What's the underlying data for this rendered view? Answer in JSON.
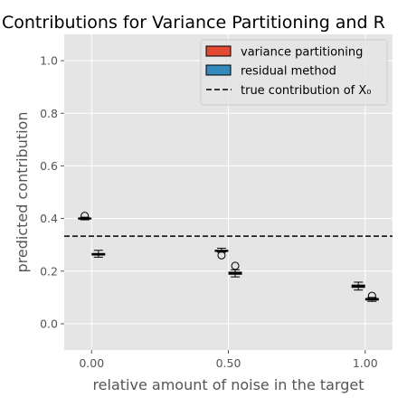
{
  "chart_data": {
    "type": "boxplot",
    "title": "Contributions for Variance Partitioning and R",
    "xlabel": "relative amount of noise in the target",
    "ylabel": "predicted contribution",
    "xlim": [
      -0.1,
      1.1
    ],
    "ylim": [
      -0.1,
      1.1
    ],
    "x_ticks": [
      0.0,
      0.5,
      1.0
    ],
    "x_tick_labels": [
      "0.00",
      "0.50",
      "1.00"
    ],
    "y_ticks": [
      0.0,
      0.2,
      0.4,
      0.6,
      0.8,
      1.0
    ],
    "y_tick_labels": [
      "0.0",
      "0.2",
      "0.4",
      "0.6",
      "0.8",
      "1.0"
    ],
    "grid": true,
    "legend_position": "top-right",
    "reference_line": {
      "y": 0.333,
      "style": "dashed",
      "color": "#000000"
    },
    "series": [
      {
        "name": "variance partitioning",
        "color": "#E24A33",
        "boxes": [
          {
            "x": -0.025,
            "whisker_low": 0.395,
            "q1": 0.398,
            "median": 0.4,
            "q3": 0.402,
            "whisker_high": 0.405,
            "outliers": [
              0.41
            ]
          },
          {
            "x": 0.475,
            "whisker_low": 0.272,
            "q1": 0.275,
            "median": 0.277,
            "q3": 0.279,
            "whisker_high": 0.287,
            "outliers": [
              0.26
            ]
          },
          {
            "x": 0.975,
            "whisker_low": 0.128,
            "q1": 0.138,
            "median": 0.142,
            "q3": 0.147,
            "whisker_high": 0.158,
            "outliers": []
          }
        ]
      },
      {
        "name": "residual method",
        "color": "#348ABD",
        "boxes": [
          {
            "x": 0.025,
            "whisker_low": 0.253,
            "q1": 0.261,
            "median": 0.264,
            "q3": 0.267,
            "whisker_high": 0.279,
            "outliers": []
          },
          {
            "x": 0.525,
            "whisker_low": 0.178,
            "q1": 0.188,
            "median": 0.192,
            "q3": 0.196,
            "whisker_high": 0.205,
            "outliers": [
              0.22
            ]
          },
          {
            "x": 1.025,
            "whisker_low": 0.085,
            "q1": 0.09,
            "median": 0.093,
            "q3": 0.096,
            "whisker_high": 0.1,
            "outliers": [
              0.106
            ]
          }
        ]
      }
    ],
    "legend": {
      "entries": [
        "variance partitioning",
        "residual method",
        "true contribution of X₀"
      ]
    }
  }
}
